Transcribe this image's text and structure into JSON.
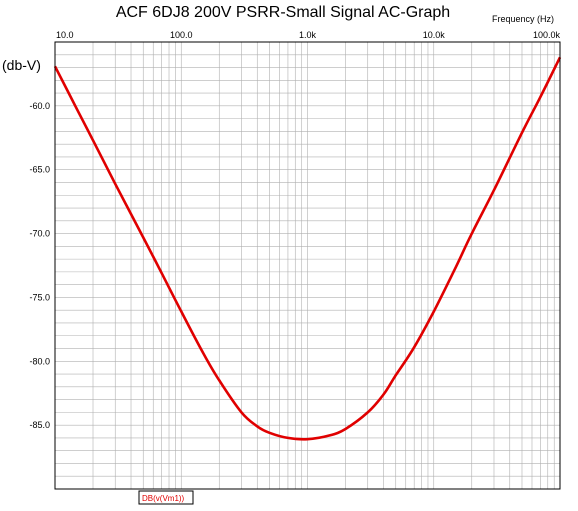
{
  "chart_data": {
    "type": "line",
    "title": "ACF 6DJ8 200V PSRR-Small Signal AC-Graph",
    "xlabel": "Frequency  (Hz)",
    "ylabel": "(db-V)",
    "x_scale": "log",
    "xlim": [
      10,
      100000
    ],
    "ylim": [
      -90,
      -55
    ],
    "grid": true,
    "x_tick_labels": [
      "10.0",
      "100.0",
      "1.0k",
      "10.0k",
      "100.0k"
    ],
    "x_tick_values": [
      10,
      100,
      1000,
      10000,
      100000
    ],
    "y_tick_labels": [
      "-60.0",
      "-65.0",
      "-70.0",
      "-75.0",
      "-80.0",
      "-85.0"
    ],
    "y_tick_values": [
      -60,
      -65,
      -70,
      -75,
      -80,
      -85
    ],
    "series": [
      {
        "name": "DB(v(Vm1))",
        "color": "#e00000",
        "x": [
          10,
          15,
          20,
          30,
          50,
          70,
          100,
          150,
          200,
          300,
          400,
          500,
          700,
          1000,
          1500,
          2000,
          3000,
          4000,
          5000,
          7000,
          10000,
          15000,
          20000,
          30000,
          50000,
          70000,
          100000
        ],
        "y": [
          -56.9,
          -60.3,
          -62.7,
          -66.1,
          -70.3,
          -73.1,
          -76.1,
          -79.4,
          -81.5,
          -84.0,
          -85.1,
          -85.6,
          -86.0,
          -86.1,
          -85.8,
          -85.3,
          -84.0,
          -82.6,
          -81.1,
          -78.9,
          -76.1,
          -72.6,
          -70.0,
          -66.6,
          -62.1,
          -59.3,
          -56.2
        ]
      }
    ]
  }
}
